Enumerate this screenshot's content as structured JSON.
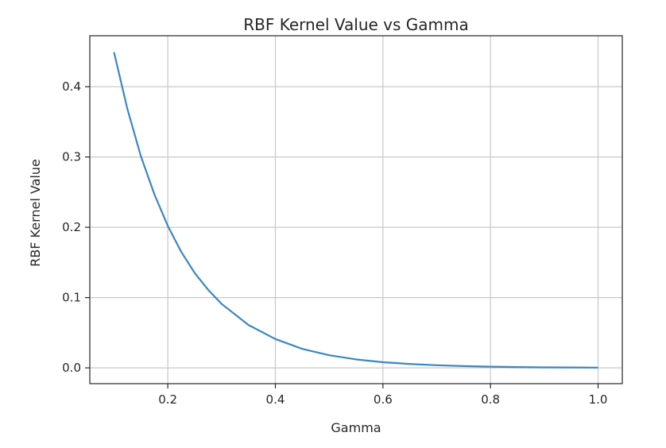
{
  "chart_data": {
    "type": "line",
    "title": "RBF Kernel Value vs Gamma",
    "xlabel": "Gamma",
    "ylabel": "RBF Kernel Value",
    "xlim": [
      0.055,
      1.045
    ],
    "ylim": [
      -0.0225,
      0.4725
    ],
    "xticks": [
      0.2,
      0.4,
      0.6,
      0.8,
      1.0
    ],
    "xtick_labels": [
      "0.2",
      "0.4",
      "0.6",
      "0.8",
      "1.0"
    ],
    "yticks": [
      0.0,
      0.1,
      0.2,
      0.3,
      0.4
    ],
    "ytick_labels": [
      "0.0",
      "0.1",
      "0.2",
      "0.3",
      "0.4"
    ],
    "grid": true,
    "series": [
      {
        "color": "#3b87c0",
        "x": [
          0.1,
          0.125,
          0.15,
          0.175,
          0.2,
          0.225,
          0.25,
          0.275,
          0.3,
          0.35,
          0.4,
          0.45,
          0.5,
          0.55,
          0.6,
          0.65,
          0.7,
          0.75,
          0.8,
          0.85,
          0.9,
          0.95,
          1.0
        ],
        "y": [
          0.449,
          0.368,
          0.301,
          0.247,
          0.202,
          0.165,
          0.135,
          0.111,
          0.091,
          0.061,
          0.041,
          0.027,
          0.018,
          0.012,
          0.008,
          0.0055,
          0.0037,
          0.0025,
          0.0017,
          0.0011,
          0.0007,
          0.0005,
          0.0003
        ]
      }
    ]
  }
}
